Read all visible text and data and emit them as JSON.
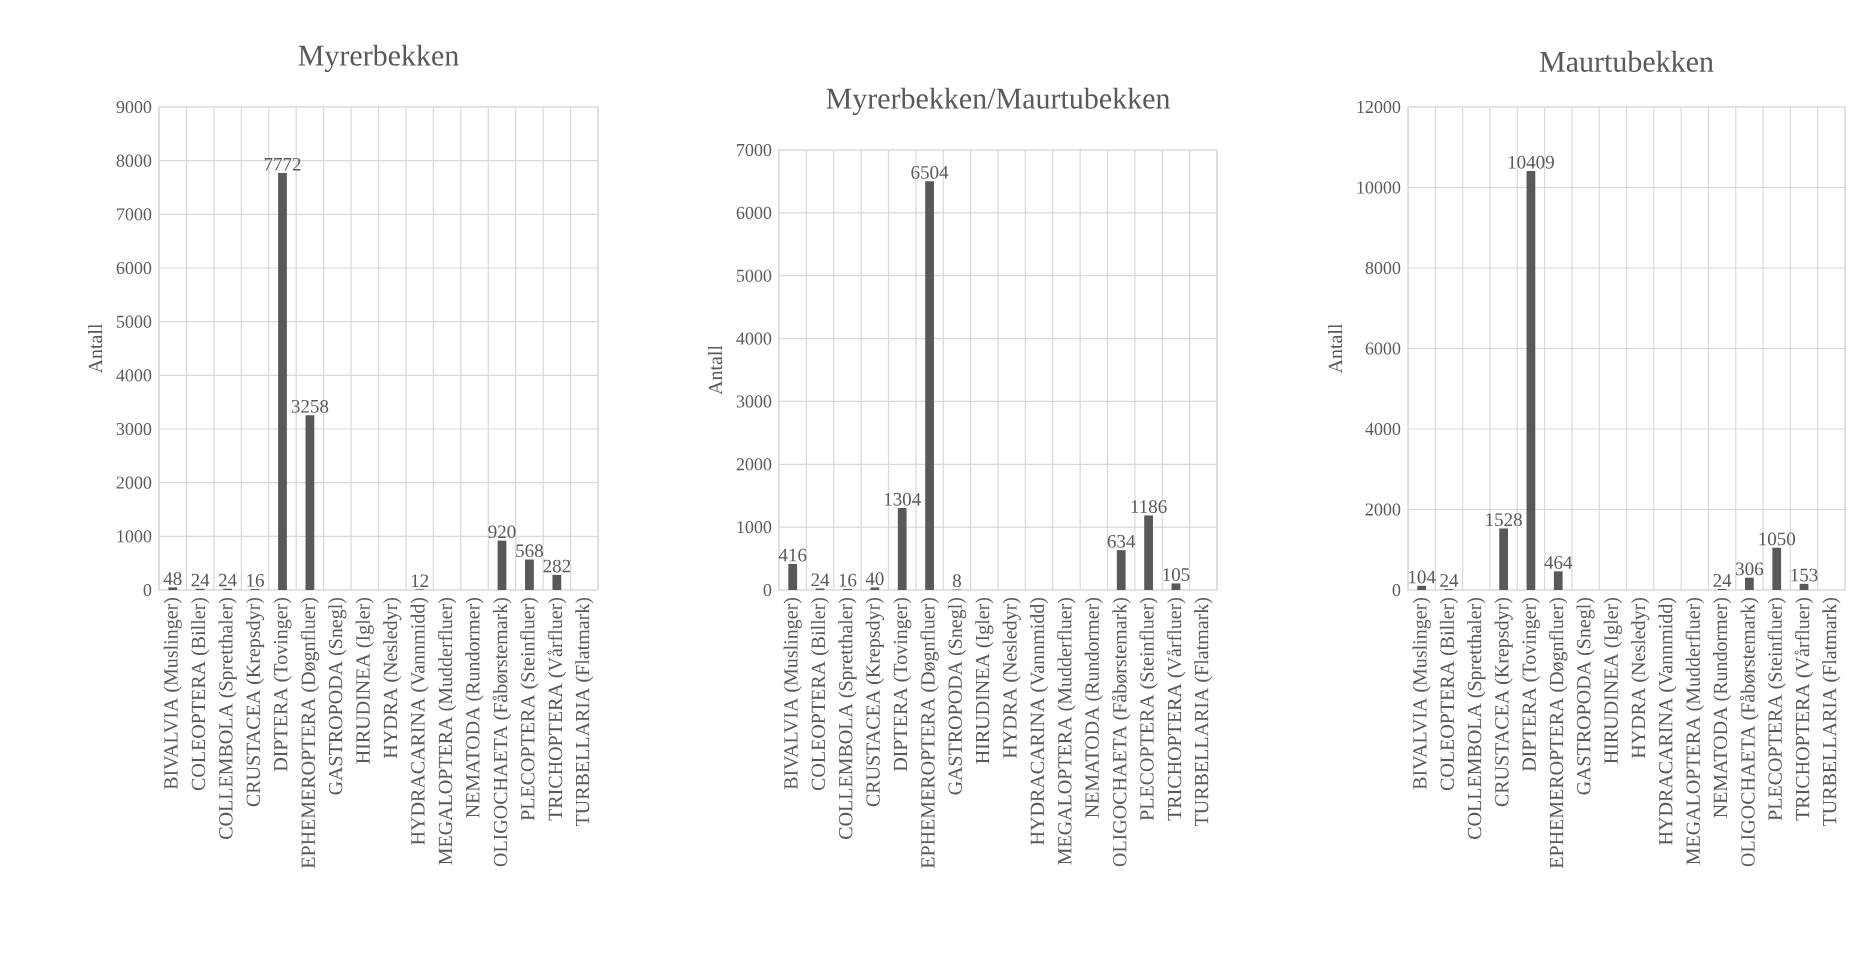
{
  "chart_data": [
    {
      "type": "bar",
      "title": "Myrerbekken",
      "ylabel": "Antall",
      "categories": [
        "BIVALVIA (Muslinger)",
        "COLEOPTERA (Biller)",
        "COLLEMBOLA (Spretthaler)",
        "CRUSTACEA (Krepsdyr)",
        "DIPTERA (Tovinger)",
        "EPHEMEROPTERA (Døgnfluer)",
        "GASTROPODA (Snegl)",
        "HIRUDINEA (Igler)",
        "HYDRA (Nesledyr)",
        "HYDRACARINA (Vannmidd)",
        "MEGALOPTERA (Mudderfluer)",
        "NEMATODA (Rundormer)",
        "OLIGOCHAETA (Fåbørstemark)",
        "PLECOPTERA (Steinfluer)",
        "TRICHOPTERA (Vårfluer)",
        "TURBELLARIA (Flatmark)"
      ],
      "values": [
        48,
        24,
        24,
        16,
        7772,
        3258,
        0,
        0,
        0,
        12,
        0,
        0,
        920,
        568,
        282,
        0
      ],
      "value_labels": [
        "48",
        "24",
        "24",
        "16",
        "7772",
        "3258",
        null,
        null,
        null,
        "12",
        null,
        null,
        "920",
        "568",
        "282",
        null
      ],
      "color": "#595959",
      "ylim": [
        0,
        9000
      ],
      "yticks": [
        0,
        1000,
        2000,
        3000,
        4000,
        5000,
        6000,
        7000,
        8000,
        9000
      ],
      "grid": true
    },
    {
      "type": "bar",
      "title": "Myrerbekken/Maurtubekken",
      "ylabel": "Antall",
      "categories": [
        "BIVALVIA (Muslinger)",
        "COLEOPTERA (Biller)",
        "COLLEMBOLA (Spretthaler)",
        "CRUSTACEA (Krepsdyr)",
        "DIPTERA (Tovinger)",
        "EPHEMEROPTERA (Døgnfluer)",
        "GASTROPODA (Snegl)",
        "HIRUDINEA (Igler)",
        "HYDRA (Nesledyr)",
        "HYDRACARINA (Vannmidd)",
        "MEGALOPTERA (Mudderfluer)",
        "NEMATODA (Rundormer)",
        "OLIGOCHAETA (Fåbørstemark)",
        "PLECOPTERA (Steinfluer)",
        "TRICHOPTERA (Vårfluer)",
        "TURBELLARIA (Flatmark)"
      ],
      "values": [
        416,
        24,
        16,
        40,
        1304,
        6504,
        8,
        0,
        0,
        0,
        0,
        0,
        634,
        1186,
        105,
        0
      ],
      "value_labels": [
        "416",
        "24",
        "16",
        "40",
        "1304",
        "6504",
        "8",
        null,
        null,
        null,
        null,
        null,
        "634",
        "1186",
        "105",
        null
      ],
      "color": "#595959",
      "ylim": [
        0,
        7000
      ],
      "yticks": [
        0,
        1000,
        2000,
        3000,
        4000,
        5000,
        6000,
        7000
      ],
      "grid": true
    },
    {
      "type": "bar",
      "title": "Maurtubekken",
      "ylabel": "Antall",
      "categories": [
        "BIVALVIA (Muslinger)",
        "COLEOPTERA (Biller)",
        "COLLEMBOLA (Spretthaler)",
        "CRUSTACEA (Krepsdyr)",
        "DIPTERA (Tovinger)",
        "EPHEMEROPTERA (Døgnfluer)",
        "GASTROPODA (Snegl)",
        "HIRUDINEA (Igler)",
        "HYDRA (Nesledyr)",
        "HYDRACARINA (Vannmidd)",
        "MEGALOPTERA (Mudderfluer)",
        "NEMATODA (Rundormer)",
        "OLIGOCHAETA (Fåbørstemark)",
        "PLECOPTERA (Steinfluer)",
        "TRICHOPTERA (Vårfluer)",
        "TURBELLARIA (Flatmark)"
      ],
      "values": [
        104,
        24,
        0,
        1528,
        10409,
        464,
        0,
        0,
        0,
        0,
        0,
        24,
        306,
        1050,
        153,
        0
      ],
      "value_labels": [
        "104",
        "24",
        null,
        "1528",
        "10409",
        "464",
        null,
        null,
        null,
        null,
        null,
        "24",
        "306",
        "1050",
        "153",
        null
      ],
      "color": "#595959",
      "ylim": [
        0,
        12000
      ],
      "yticks": [
        0,
        2000,
        4000,
        6000,
        8000,
        10000,
        12000
      ],
      "grid": true
    }
  ]
}
